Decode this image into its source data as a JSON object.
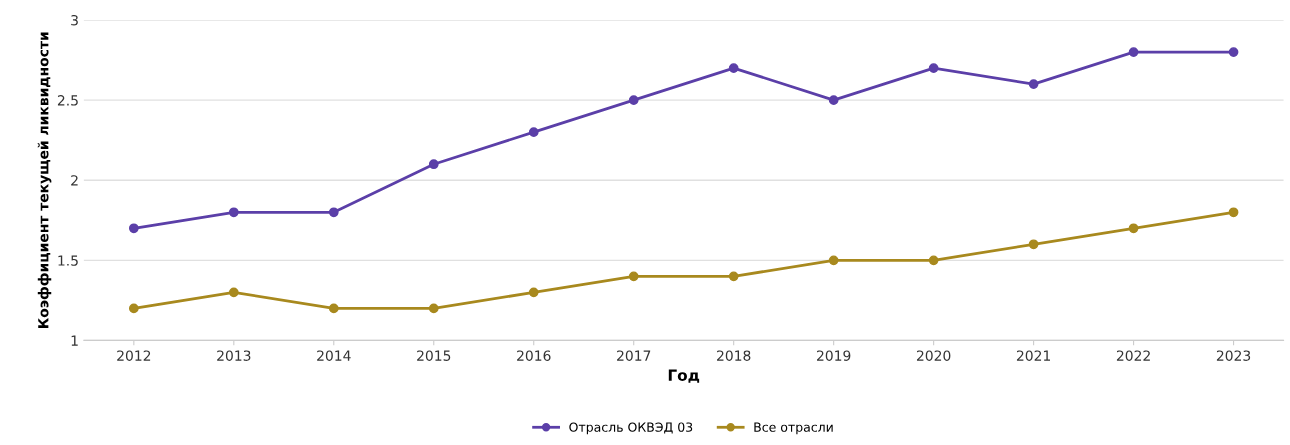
{
  "chart_data": {
    "type": "line",
    "xlabel": "Год",
    "ylabel": "Коэффициент текущей ликвидности",
    "categories": [
      "2012",
      "2013",
      "2014",
      "2015",
      "2016",
      "2017",
      "2018",
      "2019",
      "2020",
      "2021",
      "2022",
      "2023"
    ],
    "series": [
      {
        "name": "Отрасль ОКВЭД 03",
        "color": "#5b3fa8",
        "values": [
          1.7,
          1.8,
          1.8,
          2.1,
          2.3,
          2.5,
          2.7,
          2.5,
          2.7,
          2.6,
          2.8,
          2.8
        ]
      },
      {
        "name": "Все отрасли",
        "color": "#a8891e",
        "values": [
          1.2,
          1.3,
          1.2,
          1.2,
          1.3,
          1.4,
          1.4,
          1.5,
          1.5,
          1.6,
          1.7,
          1.8
        ]
      }
    ],
    "ylim": [
      1,
      3
    ],
    "yticks": [
      1,
      1.5,
      2,
      2.5,
      3
    ],
    "grid": "y",
    "legend": "bottom",
    "marker": "circle",
    "line_style": "solid"
  }
}
